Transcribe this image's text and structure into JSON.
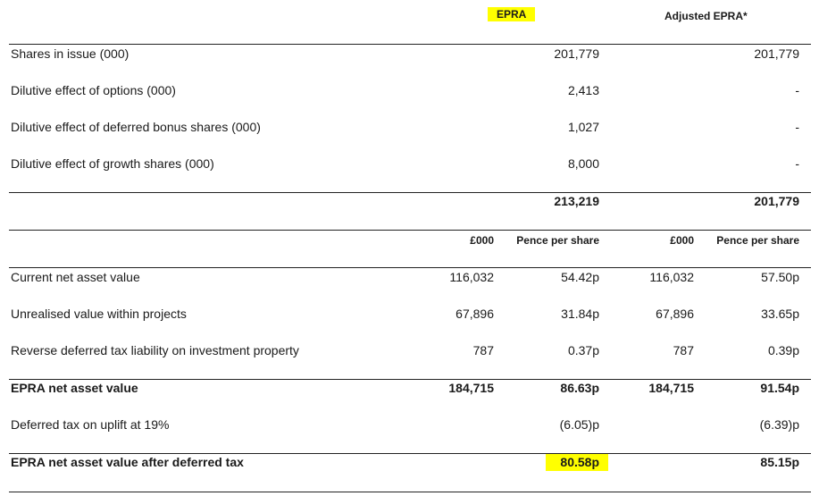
{
  "header": {
    "epra": "EPRA",
    "adjusted_epra": "Adjusted EPRA*"
  },
  "shares": {
    "rows": [
      {
        "label": "Shares in issue (000)",
        "epra": "201,779",
        "adjusted": "201,779"
      },
      {
        "label": "Dilutive effect of options (000)",
        "epra": "2,413",
        "adjusted": "-"
      },
      {
        "label": "Dilutive effect of deferred bonus shares (000)",
        "epra": "1,027",
        "adjusted": "-"
      },
      {
        "label": "Dilutive effect of growth shares (000)",
        "epra": "8,000",
        "adjusted": "-"
      }
    ],
    "total": {
      "epra": "213,219",
      "adjusted": "201,779"
    }
  },
  "nav_header": {
    "col1": "£000",
    "col2": "Pence per share",
    "col3": "£000",
    "col4": "Pence per share"
  },
  "nav": {
    "rows": [
      {
        "label": "Current net asset value",
        "c1": "116,032",
        "c2": "54.42p",
        "c3": "116,032",
        "c4": "57.50p"
      },
      {
        "label": "Unrealised value within projects",
        "c1": "67,896",
        "c2": "31.84p",
        "c3": "67,896",
        "c4": "33.65p"
      },
      {
        "label": "Reverse deferred tax liability on investment property",
        "c1": "787",
        "c2": "0.37p",
        "c3": "787",
        "c4": "0.39p"
      }
    ],
    "epra_nav": {
      "label": "EPRA net asset value",
      "c1": "184,715",
      "c2": "86.63p",
      "c3": "184,715",
      "c4": "91.54p"
    },
    "deferred_tax": {
      "label": "Deferred tax on uplift at 19%",
      "c1": "",
      "c2": "(6.05)p",
      "c3": "",
      "c4": "(6.39)p"
    },
    "epra_nav_after_tax": {
      "label": "EPRA net asset value after deferred tax",
      "c1": "",
      "c2": "80.58p",
      "c3": "",
      "c4": "85.15p"
    }
  },
  "colors": {
    "highlight": "#ffff00",
    "text": "#1a1a1a",
    "rule": "#222222"
  }
}
